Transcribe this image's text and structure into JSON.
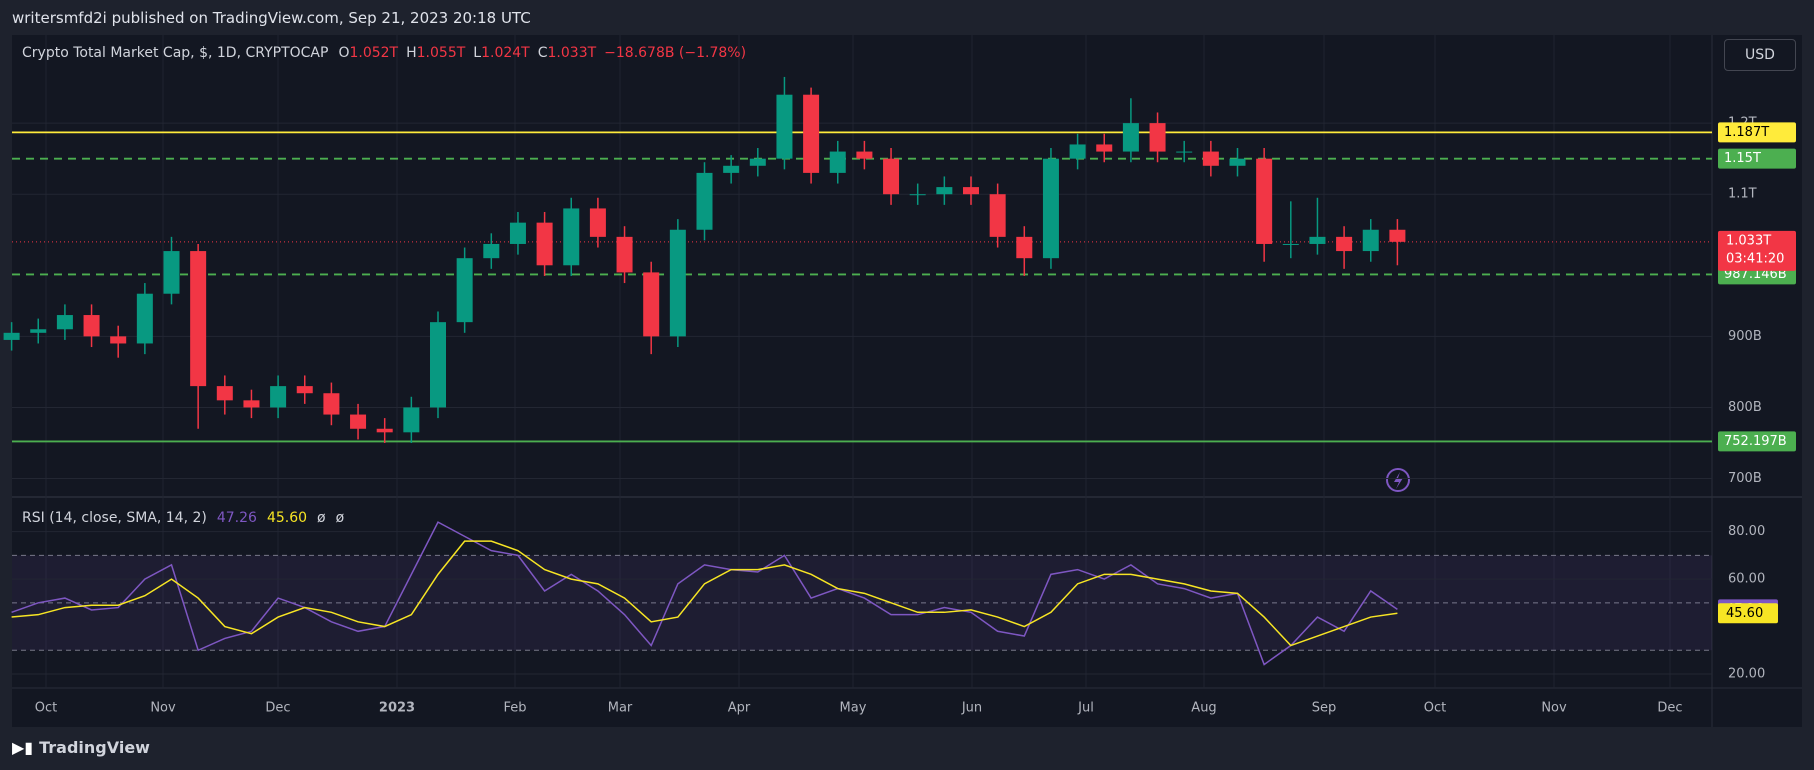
{
  "header": {
    "publisher": "writersmfd2i published on TradingView.com, Sep 21, 2023 20:18 UTC",
    "brand": "TradingView",
    "currency": "USD"
  },
  "chart_data": [
    {
      "type": "candlestick",
      "title": "Crypto Total Market Cap, $, 1D, CRYPTOCAP",
      "ohlc": [
        {
          "label": "O",
          "value": "1.052T"
        },
        {
          "label": "H",
          "value": "1.055T"
        },
        {
          "label": "L",
          "value": "1.024T"
        },
        {
          "label": "C",
          "value": "1.033T"
        }
      ],
      "change": "−18.678B (−1.78%)",
      "x_labels": [
        "Oct",
        "Nov",
        "Dec",
        "2023",
        "Feb",
        "Mar",
        "Apr",
        "May",
        "Jun",
        "Jul",
        "Aug",
        "Sep",
        "Oct",
        "Nov",
        "Dec"
      ],
      "open": [
        895,
        905,
        910,
        930,
        900,
        890,
        960,
        1020,
        830,
        810,
        800,
        830,
        820,
        790,
        770,
        765,
        800,
        920,
        1010,
        1030,
        1060,
        1000,
        1080,
        1040,
        990,
        900,
        1050,
        1130,
        1140,
        1150,
        1240,
        1130,
        1160,
        1150,
        1100,
        1100,
        1110,
        1100,
        1040,
        1010,
        1150,
        1170,
        1160,
        1200,
        1160,
        1160,
        1140,
        1150,
        1030,
        1030,
        1040,
        1020,
        1050
      ],
      "high": [
        920,
        925,
        945,
        945,
        915,
        975,
        1040,
        1030,
        845,
        825,
        845,
        845,
        835,
        805,
        785,
        815,
        935,
        1025,
        1045,
        1075,
        1075,
        1095,
        1095,
        1055,
        1005,
        1065,
        1145,
        1155,
        1165,
        1265,
        1250,
        1175,
        1175,
        1165,
        1115,
        1125,
        1125,
        1115,
        1055,
        1165,
        1185,
        1185,
        1235,
        1215,
        1175,
        1175,
        1165,
        1165,
        1090,
        1095,
        1055,
        1065,
        1065
      ],
      "low": [
        880,
        890,
        895,
        885,
        870,
        875,
        945,
        770,
        790,
        785,
        785,
        805,
        775,
        755,
        750,
        750,
        785,
        905,
        995,
        1015,
        985,
        985,
        1025,
        975,
        875,
        885,
        1035,
        1115,
        1125,
        1135,
        1115,
        1115,
        1135,
        1085,
        1085,
        1085,
        1085,
        1025,
        985,
        995,
        1135,
        1145,
        1145,
        1145,
        1145,
        1125,
        1125,
        1005,
        1010,
        1015,
        995,
        1005,
        1000
      ],
      "close": [
        905,
        910,
        930,
        900,
        890,
        960,
        1020,
        830,
        810,
        800,
        830,
        820,
        790,
        770,
        765,
        800,
        920,
        1010,
        1030,
        1060,
        1000,
        1080,
        1040,
        990,
        900,
        1050,
        1130,
        1140,
        1150,
        1240,
        1130,
        1160,
        1150,
        1100,
        1100,
        1110,
        1100,
        1040,
        1010,
        1150,
        1170,
        1160,
        1200,
        1160,
        1160,
        1140,
        1150,
        1030,
        1030,
        1040,
        1020,
        1050,
        1033
      ],
      "up_color": "#089981",
      "down_color": "#f23645",
      "ylim": [
        674,
        1324
      ],
      "yticks": [
        {
          "value": 700,
          "label": "700B"
        },
        {
          "value": 800,
          "label": "800B"
        },
        {
          "value": 900,
          "label": "900B"
        },
        {
          "value": 1100,
          "label": "1.1T"
        },
        {
          "value": 1200,
          "label": "1.2T"
        }
      ],
      "grid": true,
      "levels": [
        {
          "value": 1187,
          "label": "1.187T",
          "color": "#ffeb3b",
          "style": "solid"
        },
        {
          "value": 1150,
          "label": "1.15T",
          "color": "#4caf50",
          "style": "dashed"
        },
        {
          "value": 987.146,
          "label": "987.146B",
          "color": "#4caf50",
          "style": "dashed"
        },
        {
          "value": 752.197,
          "label": "752.197B",
          "color": "#4caf50",
          "style": "solid"
        }
      ],
      "last_price": {
        "value": 1033,
        "label": "1.033T",
        "countdown": "03:41:20",
        "color": "#f23645"
      }
    },
    {
      "type": "line",
      "title": "RSI (14, close, SMA, 14, 2)",
      "legend_extras": [
        "ø",
        "ø"
      ],
      "series": [
        {
          "color": "#7e57c2",
          "values": [
            46,
            50,
            52,
            47,
            48,
            60,
            66,
            30,
            35,
            38,
            52,
            48,
            42,
            38,
            40,
            62,
            84,
            78,
            72,
            70,
            55,
            62,
            55,
            45,
            32,
            58,
            66,
            64,
            63,
            70,
            52,
            56,
            52,
            45,
            45,
            48,
            46,
            38,
            36,
            62,
            64,
            60,
            66,
            58,
            56,
            52,
            54,
            24,
            32,
            44,
            38,
            55,
            47.26
          ],
          "last": {
            "value": 47.26,
            "label": "47.26"
          },
          "text_color": "#ffffff"
        },
        {
          "color": "#f7e524",
          "values": [
            44,
            45,
            48,
            49,
            49,
            53,
            60,
            52,
            40,
            37,
            44,
            48,
            46,
            42,
            40,
            45,
            62,
            76,
            76,
            72,
            64,
            60,
            58,
            52,
            42,
            44,
            58,
            64,
            64,
            66,
            62,
            56,
            54,
            50,
            46,
            46,
            47,
            44,
            40,
            46,
            58,
            62,
            62,
            60,
            58,
            55,
            54,
            44,
            32,
            36,
            40,
            44,
            45.6
          ],
          "last": {
            "value": 45.6,
            "label": "45.60"
          },
          "text_color": "#000000"
        }
      ],
      "ylim": [
        14.1,
        94.6
      ],
      "yticks": [
        {
          "value": 20,
          "label": "20.00"
        },
        {
          "value": 60,
          "label": "60.00"
        },
        {
          "value": 80,
          "label": "80.00"
        }
      ],
      "bands": [
        70,
        50,
        30
      ]
    }
  ]
}
